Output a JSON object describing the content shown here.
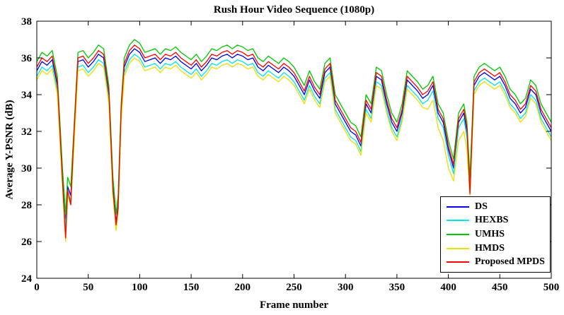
{
  "chart_data": {
    "type": "line",
    "title": "Rush Hour Video Sequence (1080p)",
    "xlabel": "Frame number",
    "ylabel": "Average Y-PSNR (dB)",
    "xlim": [
      0,
      500
    ],
    "ylim": [
      24,
      38
    ],
    "xticks": [
      0,
      50,
      100,
      150,
      200,
      250,
      300,
      350,
      400,
      450,
      500
    ],
    "yticks": [
      24,
      26,
      28,
      30,
      32,
      34,
      36,
      38
    ],
    "grid": false,
    "legend_position": "bottom-right",
    "x": [
      0,
      5,
      10,
      15,
      20,
      25,
      28,
      30,
      33,
      36,
      40,
      45,
      50,
      55,
      60,
      65,
      70,
      74,
      77,
      79,
      82,
      85,
      90,
      95,
      100,
      105,
      110,
      115,
      120,
      125,
      130,
      135,
      140,
      145,
      150,
      155,
      160,
      165,
      170,
      175,
      180,
      185,
      190,
      195,
      200,
      205,
      210,
      215,
      220,
      225,
      230,
      235,
      240,
      245,
      250,
      255,
      260,
      265,
      270,
      275,
      280,
      285,
      290,
      295,
      300,
      305,
      310,
      315,
      320,
      325,
      330,
      335,
      340,
      345,
      350,
      355,
      360,
      365,
      370,
      375,
      380,
      385,
      390,
      395,
      400,
      405,
      410,
      415,
      418,
      421,
      425,
      430,
      435,
      440,
      445,
      450,
      455,
      460,
      465,
      470,
      475,
      480,
      485,
      490,
      495,
      500
    ],
    "series": [
      {
        "name": "DS",
        "color": "#0000ee",
        "values": [
          35.3,
          35.8,
          35.6,
          35.9,
          34.5,
          29.5,
          27.0,
          29.0,
          28.5,
          31.5,
          35.8,
          35.9,
          35.5,
          35.8,
          36.2,
          36.0,
          34.0,
          29.0,
          27.0,
          28.0,
          33.0,
          35.5,
          36.2,
          36.5,
          36.3,
          35.8,
          35.9,
          36.0,
          35.7,
          36.0,
          35.9,
          36.1,
          35.8,
          35.6,
          35.4,
          35.7,
          35.3,
          35.6,
          36.0,
          35.9,
          36.1,
          36.2,
          36.0,
          36.2,
          36.1,
          35.9,
          36.0,
          35.5,
          35.3,
          35.6,
          35.4,
          35.2,
          35.5,
          35.3,
          35.0,
          34.5,
          34.0,
          34.8,
          34.2,
          33.8,
          35.2,
          35.5,
          33.5,
          33.0,
          32.5,
          32.0,
          31.8,
          31.2,
          33.5,
          33.0,
          35.0,
          34.8,
          33.5,
          32.5,
          32.0,
          33.0,
          34.8,
          34.5,
          34.2,
          33.8,
          34.0,
          34.5,
          33.0,
          32.5,
          31.0,
          30.0,
          32.5,
          33.0,
          32.0,
          29.0,
          34.5,
          35.0,
          35.2,
          35.0,
          34.8,
          35.0,
          34.5,
          33.8,
          33.5,
          33.0,
          33.3,
          34.3,
          34.0,
          33.0,
          32.5,
          32.0
        ]
      },
      {
        "name": "HEXBS",
        "color": "#00e5e5",
        "values": [
          35.0,
          35.5,
          35.3,
          35.6,
          34.2,
          29.2,
          26.8,
          28.7,
          28.2,
          31.2,
          35.5,
          35.6,
          35.2,
          35.5,
          35.9,
          35.7,
          33.7,
          28.7,
          26.8,
          27.7,
          32.7,
          35.2,
          35.9,
          36.2,
          36.0,
          35.5,
          35.6,
          35.7,
          35.4,
          35.7,
          35.6,
          35.8,
          35.5,
          35.3,
          35.1,
          35.4,
          35.0,
          35.3,
          35.7,
          35.6,
          35.8,
          35.9,
          35.7,
          35.9,
          35.8,
          35.6,
          35.7,
          35.2,
          35.0,
          35.3,
          35.1,
          34.9,
          35.2,
          35.0,
          34.7,
          34.2,
          33.7,
          34.5,
          33.9,
          33.5,
          34.9,
          35.2,
          33.2,
          32.7,
          32.2,
          31.7,
          31.5,
          30.9,
          33.2,
          32.7,
          34.7,
          34.5,
          33.2,
          32.2,
          31.7,
          32.7,
          34.5,
          34.2,
          33.9,
          33.5,
          33.7,
          34.2,
          32.7,
          32.2,
          30.7,
          29.7,
          32.2,
          32.7,
          31.7,
          28.8,
          34.2,
          34.7,
          34.9,
          34.7,
          34.5,
          34.7,
          34.2,
          33.5,
          33.2,
          32.7,
          33.0,
          34.0,
          33.7,
          32.7,
          32.2,
          31.7
        ]
      },
      {
        "name": "UMHS",
        "color": "#00c800",
        "values": [
          35.8,
          36.3,
          36.1,
          36.4,
          35.0,
          30.0,
          27.5,
          29.5,
          29.0,
          32.0,
          36.3,
          36.4,
          36.0,
          36.3,
          36.7,
          36.5,
          34.5,
          29.5,
          27.5,
          28.5,
          33.5,
          36.0,
          36.7,
          37.0,
          36.8,
          36.3,
          36.4,
          36.5,
          36.2,
          36.5,
          36.4,
          36.6,
          36.3,
          36.1,
          35.9,
          36.2,
          35.8,
          36.1,
          36.5,
          36.4,
          36.6,
          36.7,
          36.5,
          36.7,
          36.6,
          36.4,
          36.5,
          36.0,
          35.8,
          36.1,
          35.9,
          35.7,
          36.0,
          35.8,
          35.5,
          35.0,
          34.5,
          35.3,
          34.7,
          34.3,
          35.7,
          36.0,
          34.0,
          33.5,
          33.0,
          32.5,
          32.3,
          31.7,
          34.0,
          33.5,
          35.5,
          35.3,
          34.0,
          33.0,
          32.5,
          33.5,
          35.3,
          35.0,
          34.7,
          34.3,
          34.5,
          35.0,
          33.5,
          33.0,
          31.5,
          30.5,
          33.0,
          33.5,
          32.5,
          29.5,
          35.0,
          35.5,
          35.7,
          35.5,
          35.3,
          35.5,
          35.0,
          34.3,
          34.0,
          33.5,
          33.8,
          34.8,
          34.5,
          33.5,
          33.0,
          32.5
        ]
      },
      {
        "name": "HMDS",
        "color": "#e8e000",
        "values": [
          34.8,
          35.3,
          35.1,
          35.4,
          34.0,
          29.0,
          26.0,
          28.5,
          28.0,
          31.0,
          35.3,
          35.4,
          35.0,
          35.3,
          35.7,
          35.5,
          33.5,
          28.5,
          26.6,
          27.5,
          32.5,
          35.0,
          35.7,
          36.0,
          35.8,
          35.3,
          35.4,
          35.5,
          35.2,
          35.5,
          35.4,
          35.6,
          35.3,
          35.1,
          34.9,
          35.2,
          34.8,
          35.1,
          35.5,
          35.4,
          35.6,
          35.7,
          35.5,
          35.7,
          35.6,
          35.4,
          35.5,
          35.0,
          34.8,
          35.1,
          34.9,
          34.7,
          35.0,
          34.8,
          34.5,
          34.0,
          33.5,
          34.3,
          33.7,
          33.3,
          34.7,
          35.0,
          33.0,
          32.5,
          32.0,
          31.5,
          31.3,
          30.7,
          33.0,
          32.5,
          34.5,
          34.3,
          33.0,
          32.0,
          31.5,
          32.5,
          34.3,
          34.0,
          33.7,
          33.3,
          33.2,
          33.7,
          32.2,
          31.5,
          30.0,
          29.3,
          31.5,
          32.0,
          31.0,
          28.5,
          34.0,
          34.5,
          34.7,
          34.5,
          34.3,
          34.5,
          34.0,
          33.3,
          33.0,
          32.5,
          32.8,
          33.8,
          33.5,
          32.5,
          32.0,
          31.5
        ]
      },
      {
        "name": "Proposed MPDS",
        "color": "#ff0000",
        "values": [
          35.5,
          36.0,
          35.8,
          36.1,
          34.7,
          29.3,
          26.2,
          28.8,
          28.0,
          31.7,
          36.0,
          36.1,
          35.7,
          36.0,
          36.4,
          36.2,
          34.2,
          28.8,
          26.9,
          27.8,
          33.2,
          35.7,
          36.4,
          36.7,
          36.5,
          36.0,
          36.1,
          36.2,
          35.9,
          36.2,
          36.1,
          36.3,
          36.0,
          35.8,
          35.6,
          35.9,
          35.5,
          35.8,
          36.2,
          36.1,
          36.3,
          36.4,
          36.2,
          36.4,
          36.3,
          36.1,
          36.2,
          35.7,
          35.5,
          35.8,
          35.6,
          35.4,
          35.7,
          35.5,
          35.2,
          34.7,
          34.2,
          35.0,
          34.4,
          34.0,
          35.4,
          35.7,
          33.7,
          33.2,
          32.7,
          32.2,
          32.0,
          31.4,
          33.7,
          33.2,
          35.2,
          35.0,
          33.7,
          32.7,
          32.2,
          33.2,
          35.0,
          34.7,
          34.4,
          34.0,
          34.2,
          34.7,
          33.2,
          32.7,
          31.2,
          30.2,
          32.7,
          33.2,
          32.2,
          28.6,
          34.7,
          35.2,
          35.4,
          35.2,
          35.0,
          35.2,
          34.7,
          34.0,
          33.7,
          33.2,
          33.5,
          34.5,
          34.2,
          33.2,
          32.7,
          32.2
        ]
      }
    ]
  }
}
